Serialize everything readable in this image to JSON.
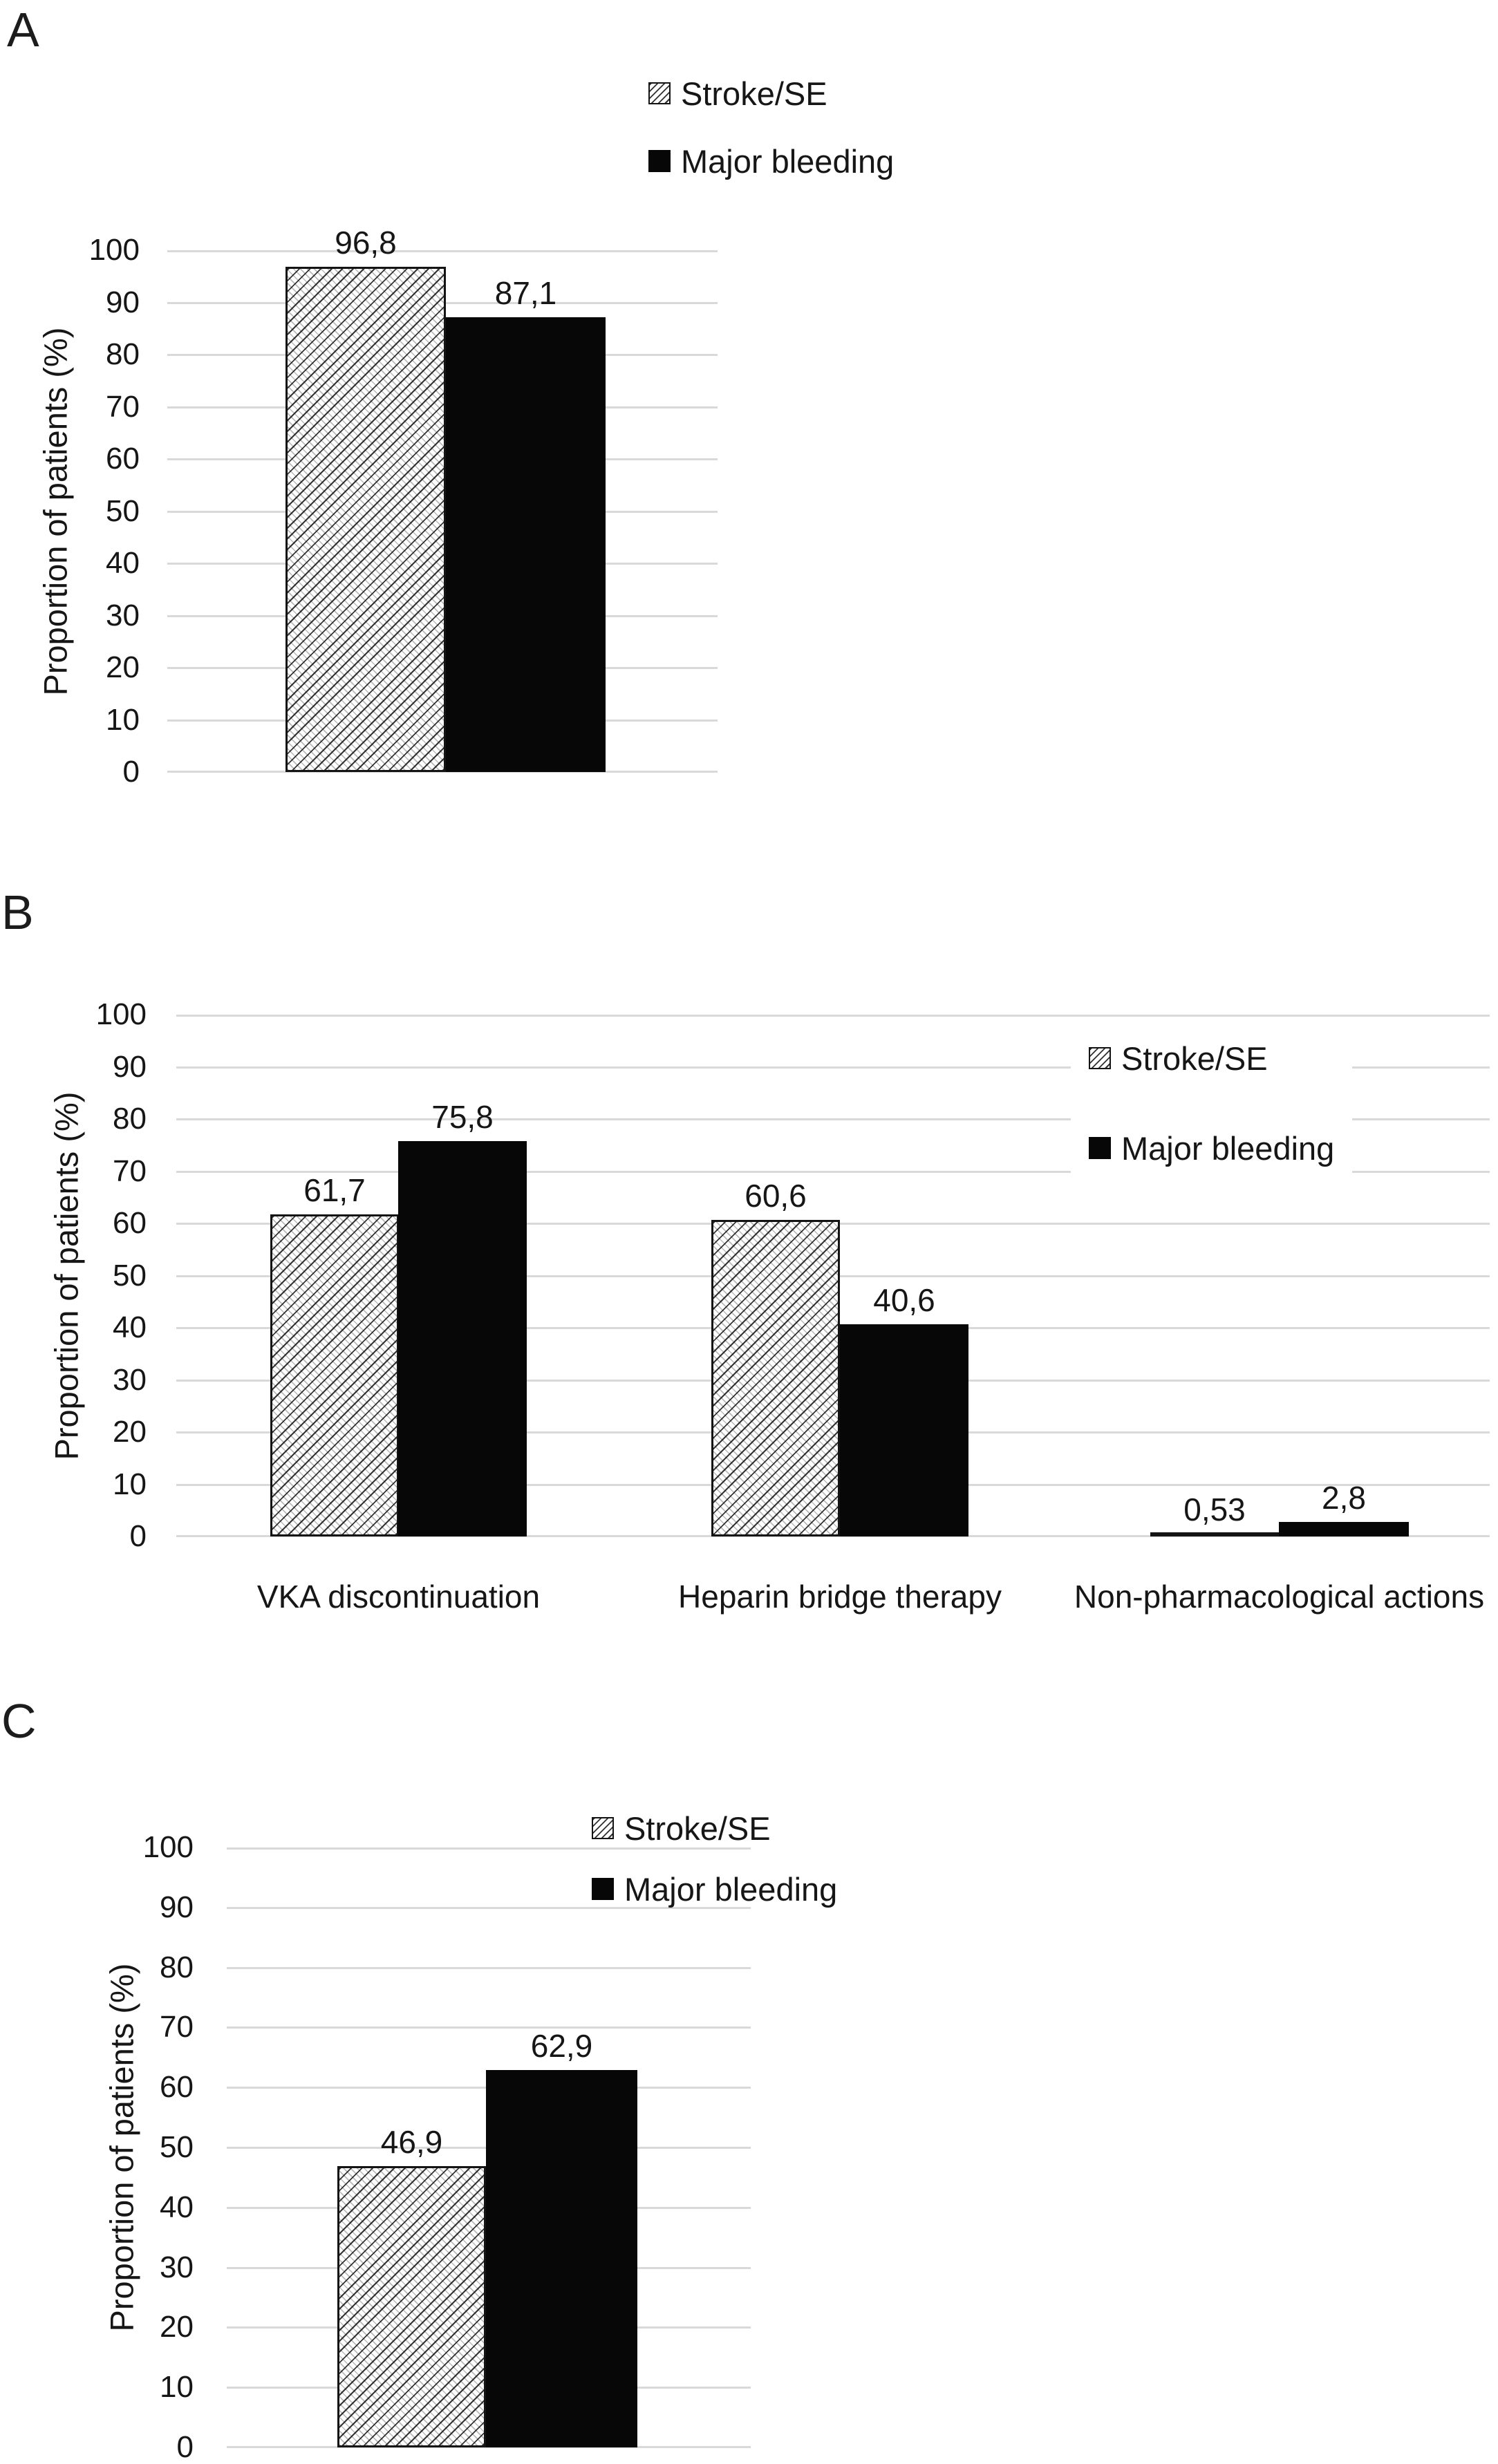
{
  "figure": {
    "description": "Three-panel grouped bar figure comparing proportions of patients with Stroke/SE vs Major bleeding",
    "decimal_style": "comma",
    "colors": {
      "bar_black": "#070707",
      "hatch_stroke": "#2a2a2a",
      "gridline": "#d9d9d9",
      "text": "#161616",
      "background": "#ffffff"
    }
  },
  "chart_data": [
    {
      "panel": "A",
      "type": "bar",
      "categories": [
        ""
      ],
      "series": [
        {
          "name": "Stroke/SE",
          "pattern": "hatched",
          "values": [
            96.8
          ],
          "labels": [
            "96,8"
          ]
        },
        {
          "name": "Major bleeding",
          "pattern": "solid-black",
          "values": [
            87.1
          ],
          "labels": [
            "87,1"
          ]
        }
      ],
      "ylabel": "Proportion of patients (%)",
      "ylim": [
        0,
        100
      ],
      "yticks": [
        100,
        90,
        80,
        70,
        60,
        50,
        40,
        30,
        20,
        10,
        0
      ],
      "grid": true,
      "legend_position": "top-center-above-chart"
    },
    {
      "panel": "B",
      "type": "bar",
      "categories": [
        "VKA discontinuation",
        "Heparin bridge therapy",
        "Non-pharmacological actions"
      ],
      "series": [
        {
          "name": "Stroke/SE",
          "pattern": "hatched",
          "values": [
            61.7,
            60.6,
            0.53
          ],
          "labels": [
            "61,7",
            "60,6",
            "0,53"
          ]
        },
        {
          "name": "Major bleeding",
          "pattern": "solid-black",
          "values": [
            75.8,
            40.6,
            2.8
          ],
          "labels": [
            "75,8",
            "40,6",
            "2,8"
          ]
        }
      ],
      "ylabel": "Proportion of patients (%)",
      "ylim": [
        0,
        100
      ],
      "yticks": [
        100,
        90,
        80,
        70,
        60,
        50,
        40,
        30,
        20,
        10,
        0
      ],
      "grid": true,
      "legend_position": "inside-top-right"
    },
    {
      "panel": "C",
      "type": "bar",
      "categories": [
        ""
      ],
      "series": [
        {
          "name": "Stroke/SE",
          "pattern": "hatched",
          "values": [
            46.9
          ],
          "labels": [
            "46,9"
          ]
        },
        {
          "name": "Major bleeding",
          "pattern": "solid-black",
          "values": [
            62.9
          ],
          "labels": [
            "62,9"
          ]
        }
      ],
      "ylabel": "Proportion of patients (%)",
      "ylim": [
        0,
        100
      ],
      "yticks": [
        100,
        90,
        80,
        70,
        60,
        50,
        40,
        30,
        20,
        10,
        0
      ],
      "grid": true,
      "legend_position": "top-right-above-plot"
    }
  ]
}
